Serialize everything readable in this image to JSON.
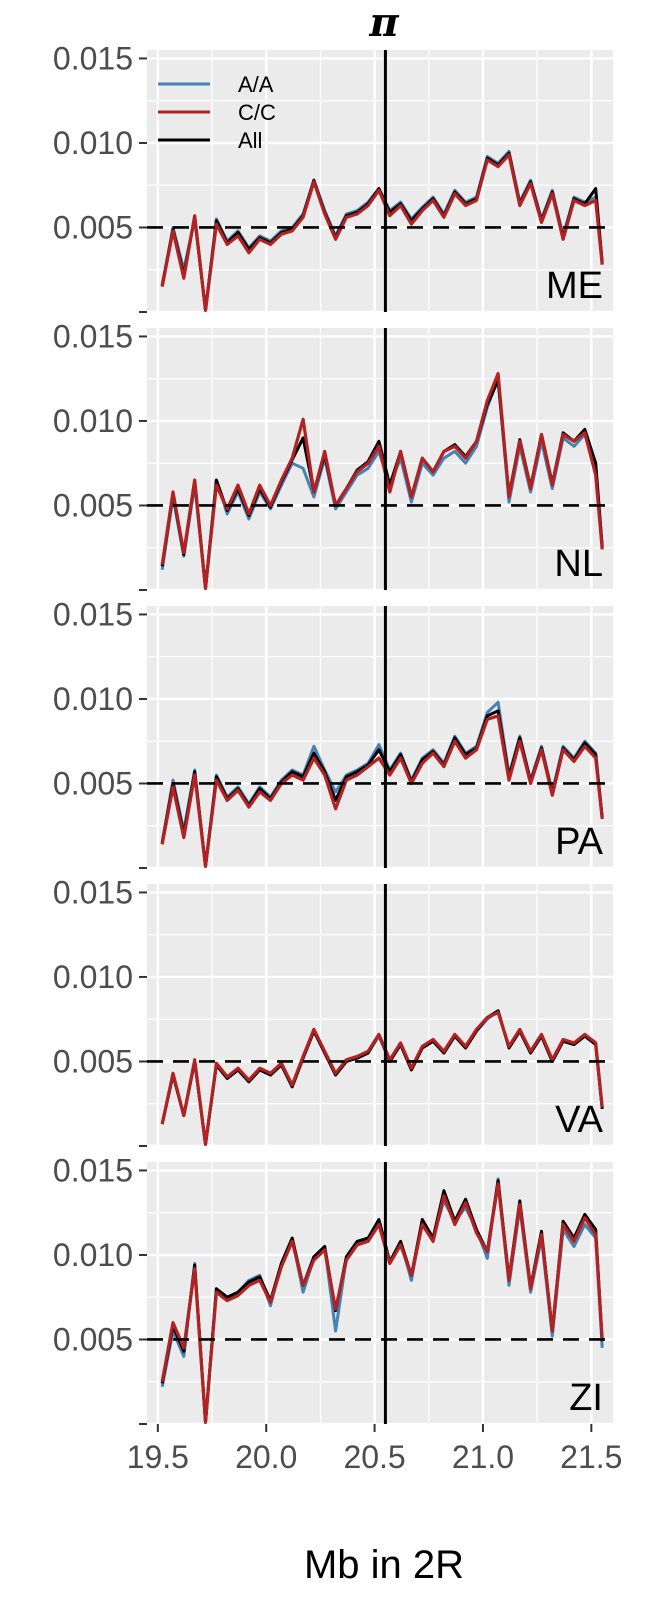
{
  "chart_data": {
    "type": "line",
    "title": "π",
    "xlabel": "Mb in 2R",
    "ylabel": "",
    "xlim": [
      19.45,
      21.6
    ],
    "ylim": [
      0.0,
      0.0155
    ],
    "x_ticks": [
      "19.5",
      "20.0",
      "20.5",
      "21.0",
      "21.5"
    ],
    "y_ticks": [
      "",
      "0.005",
      "0.010",
      "0.015"
    ],
    "hline": 0.005,
    "vline": 20.55,
    "grid": true,
    "legend": {
      "placement": "top-left",
      "entries": [
        "A/A",
        "C/C",
        "All"
      ]
    },
    "colors": {
      "A/A": "#4682b4",
      "C/C": "#b22222",
      "All": "#000000",
      "panel_bg": "#ebebeb",
      "grid": "#ffffff"
    },
    "x": [
      19.52,
      19.57,
      19.62,
      19.67,
      19.72,
      19.77,
      19.82,
      19.87,
      19.92,
      19.97,
      20.02,
      20.07,
      20.12,
      20.17,
      20.22,
      20.27,
      20.32,
      20.37,
      20.42,
      20.47,
      20.52,
      20.57,
      20.62,
      20.67,
      20.72,
      20.77,
      20.82,
      20.87,
      20.92,
      20.97,
      21.02,
      21.07,
      21.12,
      21.17,
      21.22,
      21.27,
      21.32,
      21.37,
      21.42,
      21.47,
      21.52,
      21.55
    ],
    "panels": [
      {
        "label": "ME",
        "series": [
          {
            "name": "A/A",
            "values": [
              0.0015,
              0.005,
              0.0025,
              0.0055,
              0.0001,
              0.0055,
              0.0042,
              0.0048,
              0.0038,
              0.0045,
              0.0042,
              0.0048,
              0.005,
              0.0058,
              0.0078,
              0.006,
              0.0045,
              0.0058,
              0.006,
              0.0065,
              0.0073,
              0.006,
              0.0065,
              0.0055,
              0.0062,
              0.0068,
              0.0058,
              0.0072,
              0.0065,
              0.0068,
              0.0092,
              0.0088,
              0.0095,
              0.0065,
              0.0078,
              0.0055,
              0.0072,
              0.0045,
              0.0068,
              0.0065,
              0.0068,
              0.003
            ]
          },
          {
            "name": "C/C",
            "values": [
              0.0015,
              0.0048,
              0.002,
              0.0057,
              0.0001,
              0.0052,
              0.004,
              0.0045,
              0.0035,
              0.0043,
              0.004,
              0.0046,
              0.0048,
              0.0056,
              0.0077,
              0.0058,
              0.0043,
              0.0056,
              0.0058,
              0.0063,
              0.0072,
              0.0057,
              0.0063,
              0.0052,
              0.006,
              0.0066,
              0.0056,
              0.007,
              0.0063,
              0.0066,
              0.009,
              0.0086,
              0.0093,
              0.0063,
              0.0076,
              0.0053,
              0.007,
              0.0043,
              0.0066,
              0.0063,
              0.0066,
              0.0028
            ]
          },
          {
            "name": "All",
            "values": [
              0.0016,
              0.0049,
              0.0022,
              0.0056,
              0.0001,
              0.0054,
              0.0041,
              0.0047,
              0.0037,
              0.0044,
              0.0041,
              0.0047,
              0.0049,
              0.0057,
              0.0078,
              0.0059,
              0.0044,
              0.0057,
              0.0059,
              0.0064,
              0.0073,
              0.0059,
              0.0064,
              0.0054,
              0.0061,
              0.0067,
              0.0057,
              0.0071,
              0.0064,
              0.0067,
              0.0091,
              0.0087,
              0.0094,
              0.0064,
              0.0077,
              0.0054,
              0.0071,
              0.0044,
              0.0067,
              0.0064,
              0.0073,
              0.0029
            ]
          }
        ]
      },
      {
        "label": "NL",
        "series": [
          {
            "name": "A/A",
            "values": [
              0.0012,
              0.0055,
              0.002,
              0.0062,
              0.0001,
              0.0065,
              0.0045,
              0.0058,
              0.0042,
              0.0058,
              0.0048,
              0.0062,
              0.0075,
              0.0072,
              0.0055,
              0.0078,
              0.0048,
              0.0058,
              0.0068,
              0.0072,
              0.0082,
              0.0062,
              0.0078,
              0.0052,
              0.0075,
              0.0068,
              0.0078,
              0.0082,
              0.0075,
              0.0085,
              0.0108,
              0.0125,
              0.0052,
              0.0085,
              0.0058,
              0.0088,
              0.006,
              0.009,
              0.0085,
              0.0092,
              0.0072,
              0.0025
            ]
          },
          {
            "name": "C/C",
            "values": [
              0.0015,
              0.0058,
              0.0022,
              0.0065,
              0.0001,
              0.0062,
              0.0048,
              0.0062,
              0.0045,
              0.0062,
              0.005,
              0.0065,
              0.0078,
              0.0101,
              0.0058,
              0.0082,
              0.005,
              0.006,
              0.007,
              0.0075,
              0.0085,
              0.0058,
              0.0082,
              0.0055,
              0.0078,
              0.007,
              0.0082,
              0.0085,
              0.0078,
              0.0088,
              0.0112,
              0.0128,
              0.0055,
              0.0088,
              0.006,
              0.0092,
              0.0062,
              0.0092,
              0.0088,
              0.0093,
              0.0068,
              0.0024
            ]
          },
          {
            "name": "All",
            "values": [
              0.0014,
              0.0057,
              0.0021,
              0.0065,
              0.0001,
              0.0065,
              0.0047,
              0.006,
              0.0044,
              0.006,
              0.0049,
              0.0064,
              0.0077,
              0.009,
              0.0058,
              0.008,
              0.005,
              0.006,
              0.0071,
              0.0076,
              0.0088,
              0.0062,
              0.0082,
              0.0055,
              0.0078,
              0.007,
              0.0082,
              0.0086,
              0.0079,
              0.0088,
              0.011,
              0.0124,
              0.0056,
              0.0089,
              0.0061,
              0.0092,
              0.0063,
              0.0093,
              0.0088,
              0.0095,
              0.0075,
              0.0026
            ]
          }
        ]
      },
      {
        "label": "PA",
        "series": [
          {
            "name": "A/A",
            "values": [
              0.0015,
              0.0052,
              0.0022,
              0.0058,
              0.0001,
              0.0055,
              0.0042,
              0.0048,
              0.0038,
              0.0048,
              0.0042,
              0.0052,
              0.0058,
              0.0055,
              0.0072,
              0.0058,
              0.0045,
              0.0055,
              0.0058,
              0.0062,
              0.0073,
              0.0058,
              0.0068,
              0.0052,
              0.0065,
              0.007,
              0.0062,
              0.0078,
              0.0068,
              0.0072,
              0.0092,
              0.0098,
              0.0055,
              0.0078,
              0.0052,
              0.0072,
              0.0045,
              0.0072,
              0.0065,
              0.0075,
              0.0068,
              0.003
            ]
          },
          {
            "name": "C/C",
            "values": [
              0.0014,
              0.0048,
              0.0018,
              0.0055,
              0.0001,
              0.0052,
              0.004,
              0.0046,
              0.0036,
              0.0045,
              0.004,
              0.005,
              0.0055,
              0.0052,
              0.0065,
              0.0055,
              0.0035,
              0.0052,
              0.0055,
              0.006,
              0.0065,
              0.0055,
              0.0065,
              0.005,
              0.0062,
              0.0068,
              0.006,
              0.0075,
              0.0065,
              0.007,
              0.0088,
              0.009,
              0.0052,
              0.0075,
              0.005,
              0.007,
              0.0043,
              0.007,
              0.0063,
              0.0072,
              0.0065,
              0.0029
            ]
          },
          {
            "name": "All",
            "values": [
              0.0015,
              0.005,
              0.002,
              0.0057,
              0.0001,
              0.0054,
              0.0041,
              0.0047,
              0.0037,
              0.0047,
              0.0041,
              0.0051,
              0.0057,
              0.0054,
              0.0068,
              0.0057,
              0.004,
              0.0054,
              0.0057,
              0.0061,
              0.007,
              0.0057,
              0.0067,
              0.0051,
              0.0064,
              0.0069,
              0.0061,
              0.0077,
              0.0067,
              0.0071,
              0.009,
              0.0093,
              0.0054,
              0.0077,
              0.0051,
              0.0071,
              0.0044,
              0.0071,
              0.0064,
              0.0074,
              0.0067,
              0.003
            ]
          }
        ]
      },
      {
        "label": "VA",
        "series": [
          {
            "name": "A/A",
            "values": [
              0.0013,
              0.0042,
              0.0018,
              0.005,
              0.0001,
              0.0048,
              0.004,
              0.0045,
              0.0038,
              0.0045,
              0.0042,
              0.0048,
              0.0035,
              0.0052,
              0.0068,
              0.0055,
              0.0042,
              0.005,
              0.0052,
              0.0055,
              0.0065,
              0.005,
              0.006,
              0.0045,
              0.0058,
              0.0062,
              0.0055,
              0.0065,
              0.0058,
              0.0068,
              0.0075,
              0.008,
              0.0058,
              0.0068,
              0.0055,
              0.0065,
              0.005,
              0.0062,
              0.006,
              0.0065,
              0.006,
              0.0022
            ]
          },
          {
            "name": "C/C",
            "values": [
              0.0013,
              0.0043,
              0.0018,
              0.0051,
              0.0001,
              0.0049,
              0.0041,
              0.0046,
              0.0039,
              0.0046,
              0.0043,
              0.0049,
              0.0036,
              0.0053,
              0.0069,
              0.0056,
              0.0043,
              0.0051,
              0.0053,
              0.0056,
              0.0066,
              0.0051,
              0.0061,
              0.0046,
              0.0059,
              0.0063,
              0.0056,
              0.0066,
              0.0059,
              0.0069,
              0.0076,
              0.0079,
              0.0059,
              0.0069,
              0.0056,
              0.0066,
              0.0051,
              0.0063,
              0.0061,
              0.0066,
              0.0061,
              0.0023
            ]
          },
          {
            "name": "All",
            "values": [
              0.0013,
              0.0042,
              0.0018,
              0.005,
              0.0001,
              0.0048,
              0.004,
              0.0045,
              0.0038,
              0.0045,
              0.0042,
              0.0048,
              0.0035,
              0.0052,
              0.0068,
              0.0055,
              0.0042,
              0.005,
              0.0052,
              0.0055,
              0.0066,
              0.005,
              0.006,
              0.0045,
              0.0058,
              0.0062,
              0.0055,
              0.0065,
              0.0058,
              0.0068,
              0.0076,
              0.008,
              0.0058,
              0.0068,
              0.0055,
              0.0065,
              0.005,
              0.0062,
              0.006,
              0.0065,
              0.006,
              0.0022
            ]
          }
        ]
      },
      {
        "label": "ZI",
        "series": [
          {
            "name": "A/A",
            "values": [
              0.0022,
              0.0055,
              0.004,
              0.0095,
              0.0001,
              0.008,
              0.0075,
              0.0078,
              0.0085,
              0.0088,
              0.007,
              0.0095,
              0.011,
              0.0078,
              0.0098,
              0.0105,
              0.0055,
              0.0098,
              0.0108,
              0.011,
              0.012,
              0.0095,
              0.0108,
              0.0085,
              0.012,
              0.011,
              0.0132,
              0.012,
              0.0128,
              0.0115,
              0.0098,
              0.0145,
              0.0082,
              0.0128,
              0.0078,
              0.011,
              0.0052,
              0.0115,
              0.0105,
              0.0118,
              0.011,
              0.0045
            ]
          },
          {
            "name": "C/C",
            "values": [
              0.0025,
              0.006,
              0.0045,
              0.0092,
              0.0001,
              0.0078,
              0.0073,
              0.0076,
              0.0082,
              0.0085,
              0.0072,
              0.0093,
              0.0108,
              0.0082,
              0.0097,
              0.0103,
              0.0068,
              0.0097,
              0.0106,
              0.0108,
              0.0118,
              0.0095,
              0.0106,
              0.0088,
              0.0118,
              0.0108,
              0.0135,
              0.0118,
              0.0131,
              0.0113,
              0.0102,
              0.0142,
              0.0085,
              0.013,
              0.008,
              0.0112,
              0.0055,
              0.0118,
              0.0108,
              0.0122,
              0.0112,
              0.005
            ]
          },
          {
            "name": "All",
            "values": [
              0.0024,
              0.0058,
              0.0043,
              0.0094,
              0.0001,
              0.008,
              0.0075,
              0.0078,
              0.0084,
              0.0087,
              0.0073,
              0.0095,
              0.011,
              0.0082,
              0.0099,
              0.0105,
              0.0067,
              0.0099,
              0.0108,
              0.011,
              0.0121,
              0.0096,
              0.0108,
              0.0088,
              0.0121,
              0.011,
              0.0138,
              0.012,
              0.0133,
              0.0115,
              0.0102,
              0.0144,
              0.0086,
              0.0132,
              0.0081,
              0.0114,
              0.0055,
              0.012,
              0.011,
              0.0124,
              0.0115,
              0.0049
            ]
          }
        ]
      }
    ]
  }
}
